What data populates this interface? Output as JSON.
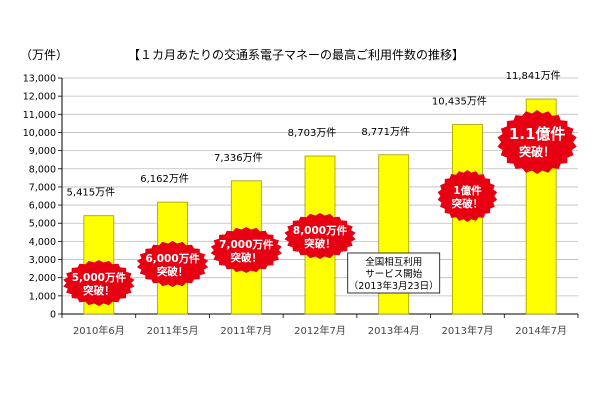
{
  "unit_label": "（万件）",
  "title": "【１カ月あたりの交通系電子マネーの最高ご利用件数の推移】",
  "colors": {
    "bar_fill": "#ffff00",
    "bar_stroke": "#a09a00",
    "badge_red": "#e60012",
    "text": "#000000"
  },
  "chart_data": {
    "type": "bar",
    "title": "【１カ月あたりの交通系電子マネーの最高ご利用件数の推移】",
    "ylabel": "（万件）",
    "xlabel": "",
    "ylim": [
      0,
      13000
    ],
    "yticks": [
      0,
      1000,
      2000,
      3000,
      4000,
      5000,
      6000,
      7000,
      8000,
      9000,
      10000,
      11000,
      12000,
      13000
    ],
    "ytick_labels": [
      "0",
      "1,000",
      "2,000",
      "3,000",
      "4,000",
      "5,000",
      "6,000",
      "7,000",
      "8,000",
      "9,000",
      "10,000",
      "11,000",
      "12,000",
      "13,000"
    ],
    "grid": true,
    "categories": [
      "2010年6月",
      "2011年5月",
      "2011年7月",
      "2012年7月",
      "2013年4月",
      "2013年7月",
      "2014年7月"
    ],
    "values": [
      5415,
      6162,
      7336,
      8703,
      8771,
      10435,
      11841
    ],
    "value_labels": [
      "5,415万件",
      "6,162万件",
      "7,336万件",
      "8,703万件",
      "8,771万件",
      "10,435万件",
      "11,841万件"
    ],
    "badges": [
      {
        "bar": 0,
        "lines": [
          "5,000万件",
          "突破！"
        ]
      },
      {
        "bar": 1,
        "lines": [
          "6,000万件",
          "突破！"
        ]
      },
      {
        "bar": 2,
        "lines": [
          "7,000万件",
          "突破！"
        ]
      },
      {
        "bar": 3,
        "lines": [
          "8,000万件",
          "突破！"
        ]
      },
      {
        "bar": 5,
        "lines": [
          "1億件",
          "突破！"
        ]
      },
      {
        "bar": 6,
        "lines": [
          "1.1億件",
          "突破！"
        ]
      }
    ],
    "annotation": {
      "bar": 4,
      "lines": [
        "全国相互利用",
        "サービス開始",
        "（2013年3月23日）"
      ]
    }
  }
}
